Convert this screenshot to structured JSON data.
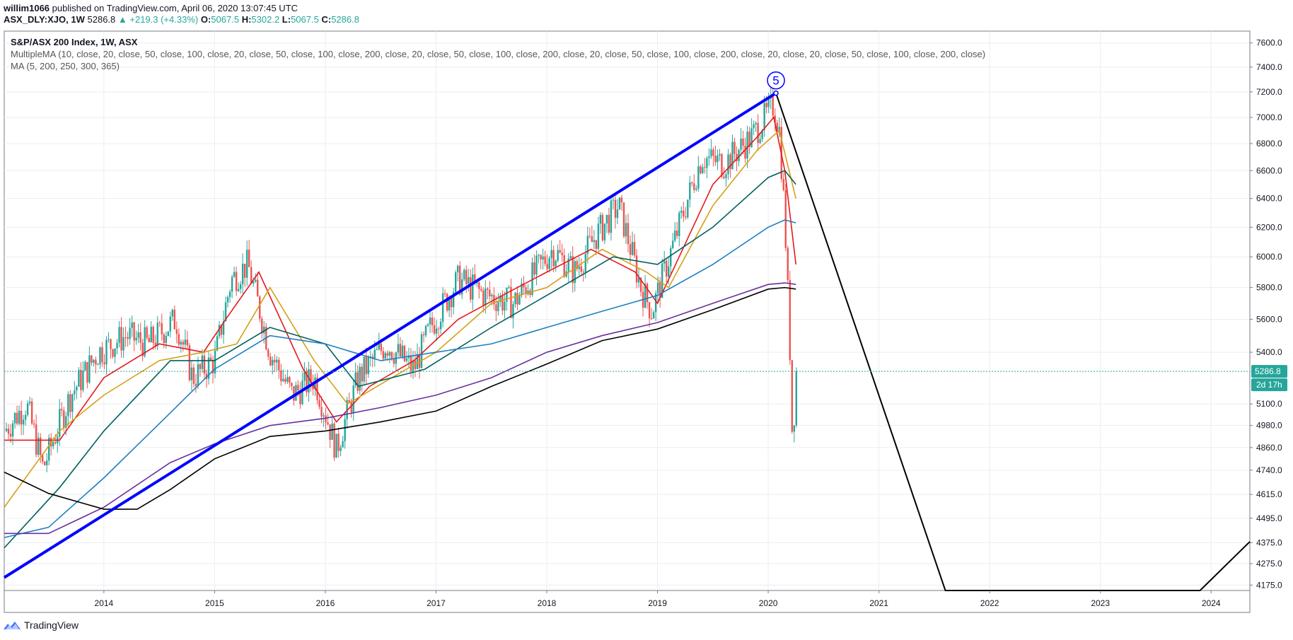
{
  "header": {
    "author": "willim1066",
    "published_text": " published on TradingView.com, April 06, 2020 13:07:45 UTC",
    "symbol": "ASX_DLY:XJO, 1W",
    "last": "5286.8",
    "change": "▲ +219.3 (+4.33%)",
    "open_label": "O:",
    "open": "5067.5",
    "high_label": "H:",
    "high": "5302.2",
    "low_label": "L:",
    "low": "5067.5",
    "close_label": "C:",
    "close": "5286.8"
  },
  "legend": {
    "title": "S&P/ASX 200 Index, 1W, ASX",
    "line2": "MultipleMA (10, close, 20, close, 50, close, 100, close, 20, close, 50, close, 100, close, 200, close, 20, close, 50, close, 100, close, 200, close, 20, close, 50, close, 100, close, 200, close, 20, close, 20, close, 50, close, 100, close, 200, close)",
    "line3": "MA (5, 200, 250, 300, 365)"
  },
  "price_label": "5286.8",
  "countdown_label": "2d 17h",
  "wave_label": "5",
  "footer": {
    "brand": "TradingView"
  },
  "colors": {
    "up": "#26a69a",
    "down": "#ef5350",
    "trendline": "#0000ff",
    "projection": "#000000",
    "ma10": "#e41a1c",
    "ma20": "#d4a017",
    "ma50": "#006060",
    "ma100": "#1e7fc2",
    "ma200": "#6a2fa0",
    "ma365": "#000000",
    "grid": "#e9eef2",
    "price_tag": "#26a69a"
  },
  "chart_data": {
    "type": "line",
    "title": "S&P/ASX 200 Index, 1W, ASX",
    "xlabel": "",
    "ylabel": "",
    "x_ticks": [
      "2014",
      "2015",
      "2016",
      "2017",
      "2018",
      "2019",
      "2020",
      "2021",
      "2022",
      "2023",
      "2024"
    ],
    "y_ticks": [
      "7600.0",
      "7400.0",
      "7200.0",
      "7000.0",
      "6800.0",
      "6600.0",
      "6400.0",
      "6200.0",
      "6000.0",
      "5800.0",
      "5600.0",
      "5400.0",
      "5100.0",
      "4980.0",
      "4860.0",
      "4740.0",
      "4615.0",
      "4495.0",
      "4375.0",
      "4275.0",
      "4175.0"
    ],
    "y_scale": "log",
    "ylim": [
      4150,
      7700
    ],
    "xlim": [
      2013.1,
      2024.35
    ],
    "grid": true,
    "series": [
      {
        "name": "",
        "kind": "price",
        "x": [
          2013.1,
          2013.3,
          2013.45,
          2013.7,
          2013.95,
          2014.2,
          2014.4,
          2014.65,
          2014.8,
          2015.0,
          2015.15,
          2015.3,
          2015.5,
          2015.7,
          2015.9,
          2016.1,
          2016.3,
          2016.55,
          2016.8,
          2016.95,
          2017.2,
          2017.45,
          2017.7,
          2017.95,
          2018.05,
          2018.25,
          2018.45,
          2018.65,
          2018.85,
          2018.95,
          2019.15,
          2019.4,
          2019.6,
          2019.85,
          2020.05,
          2020.1,
          2020.15,
          2020.2,
          2020.22,
          2020.25
        ],
        "values": [
          4950,
          5100,
          4750,
          5150,
          5400,
          5500,
          5450,
          5600,
          5250,
          5350,
          5850,
          5950,
          5400,
          5150,
          5250,
          4850,
          5250,
          5450,
          5300,
          5550,
          5850,
          5750,
          5700,
          5950,
          6050,
          5900,
          6150,
          6350,
          5800,
          5650,
          6100,
          6700,
          6650,
          6850,
          7100,
          6900,
          6250,
          5350,
          4850,
          5286.8
        ]
      },
      {
        "name": "",
        "kind": "ma10",
        "x": [
          2013.1,
          2013.6,
          2014.0,
          2014.5,
          2014.9,
          2015.1,
          2015.4,
          2015.8,
          2016.1,
          2016.4,
          2016.8,
          2017.2,
          2017.6,
          2018.0,
          2018.4,
          2018.8,
          2019.0,
          2019.5,
          2019.9,
          2020.05,
          2020.15,
          2020.25
        ],
        "values": [
          4900,
          4900,
          5250,
          5450,
          5400,
          5600,
          5900,
          5300,
          5000,
          5200,
          5350,
          5600,
          5750,
          5900,
          6050,
          5900,
          5700,
          6500,
          6850,
          7000,
          6600,
          5950
        ]
      },
      {
        "name": "",
        "kind": "ma20",
        "x": [
          2013.1,
          2013.6,
          2014.0,
          2014.5,
          2014.9,
          2015.2,
          2015.5,
          2015.9,
          2016.2,
          2016.6,
          2017.0,
          2017.5,
          2018.0,
          2018.5,
          2018.9,
          2019.1,
          2019.5,
          2019.9,
          2020.1,
          2020.25
        ],
        "values": [
          4550,
          4950,
          5150,
          5350,
          5400,
          5450,
          5800,
          5350,
          5100,
          5250,
          5400,
          5700,
          5800,
          6050,
          5900,
          5800,
          6350,
          6750,
          6900,
          6400
        ]
      },
      {
        "name": "",
        "kind": "ma50",
        "x": [
          2013.1,
          2013.6,
          2014.0,
          2014.6,
          2015.0,
          2015.5,
          2016.0,
          2016.3,
          2016.9,
          2017.5,
          2018.0,
          2018.6,
          2019.0,
          2019.5,
          2020.0,
          2020.15,
          2020.25
        ],
        "values": [
          4350,
          4650,
          4950,
          5350,
          5350,
          5550,
          5450,
          5200,
          5300,
          5550,
          5750,
          6000,
          5950,
          6200,
          6550,
          6600,
          6500
        ]
      },
      {
        "name": "",
        "kind": "ma100",
        "x": [
          2013.1,
          2013.5,
          2014.0,
          2014.6,
          2015.0,
          2015.5,
          2016.0,
          2016.5,
          2017.0,
          2017.5,
          2018.0,
          2018.5,
          2019.0,
          2019.5,
          2020.0,
          2020.15,
          2020.25
        ],
        "values": [
          4400,
          4450,
          4700,
          5050,
          5300,
          5500,
          5450,
          5350,
          5400,
          5450,
          5550,
          5650,
          5750,
          5950,
          6200,
          6250,
          6230
        ]
      },
      {
        "name": "",
        "kind": "ma200",
        "x": [
          2013.1,
          2013.5,
          2014.0,
          2014.6,
          2015.0,
          2015.5,
          2016.0,
          2016.5,
          2017.0,
          2017.5,
          2018.0,
          2018.5,
          2019.0,
          2019.5,
          2020.0,
          2020.15,
          2020.25
        ],
        "values": [
          4420,
          4420,
          4550,
          4780,
          4880,
          4980,
          5020,
          5080,
          5150,
          5250,
          5400,
          5500,
          5580,
          5700,
          5820,
          5830,
          5820
        ]
      },
      {
        "name": "",
        "kind": "ma365",
        "x": [
          2013.1,
          2013.5,
          2014.0,
          2014.3,
          2014.6,
          2015.0,
          2015.5,
          2016.0,
          2016.5,
          2017.0,
          2017.5,
          2018.0,
          2018.5,
          2019.0,
          2019.5,
          2020.0,
          2020.15,
          2020.25
        ],
        "values": [
          4730,
          4620,
          4540,
          4540,
          4640,
          4800,
          4920,
          4950,
          5000,
          5060,
          5200,
          5330,
          5470,
          5540,
          5660,
          5790,
          5800,
          5790
        ]
      }
    ],
    "trendline": {
      "x": [
        2013.1,
        2020.07
      ],
      "values": [
        4210,
        7190
      ]
    },
    "projection": {
      "x": [
        2020.07,
        2021.6,
        2023.9,
        2024.35
      ],
      "values": [
        7190,
        4150,
        4150,
        4380
      ]
    },
    "wave_point": {
      "x": 2020.07,
      "value": 7190,
      "label": "5"
    }
  }
}
